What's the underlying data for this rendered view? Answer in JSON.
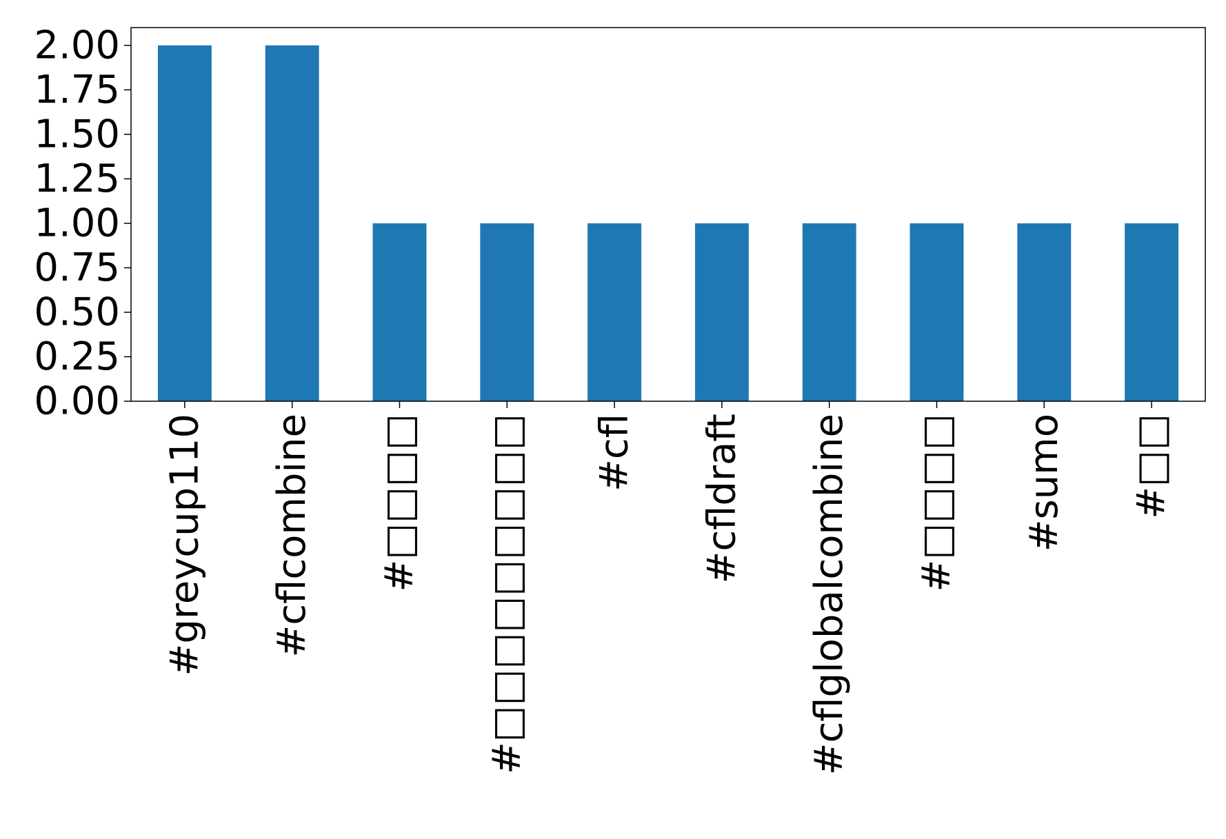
{
  "chart_data": {
    "type": "bar",
    "title": "",
    "xlabel": "",
    "ylabel": "",
    "categories": [
      "#greycup110",
      "#cflcombine",
      "#□□□□",
      "#□□□□□□□□□",
      "#cfl",
      "#cfldraft",
      "#cflglobalcombine",
      "#□□□□",
      "#sumo",
      "#□□"
    ],
    "values": [
      2,
      2,
      1,
      1,
      1,
      1,
      1,
      1,
      1,
      1
    ],
    "ylim": [
      0,
      2.1
    ],
    "yticks": [
      "0.00",
      "0.25",
      "0.50",
      "0.75",
      "1.00",
      "1.25",
      "1.50",
      "1.75",
      "2.00"
    ],
    "grid": false,
    "legend": "none",
    "bar_color": "#1f77b4"
  }
}
